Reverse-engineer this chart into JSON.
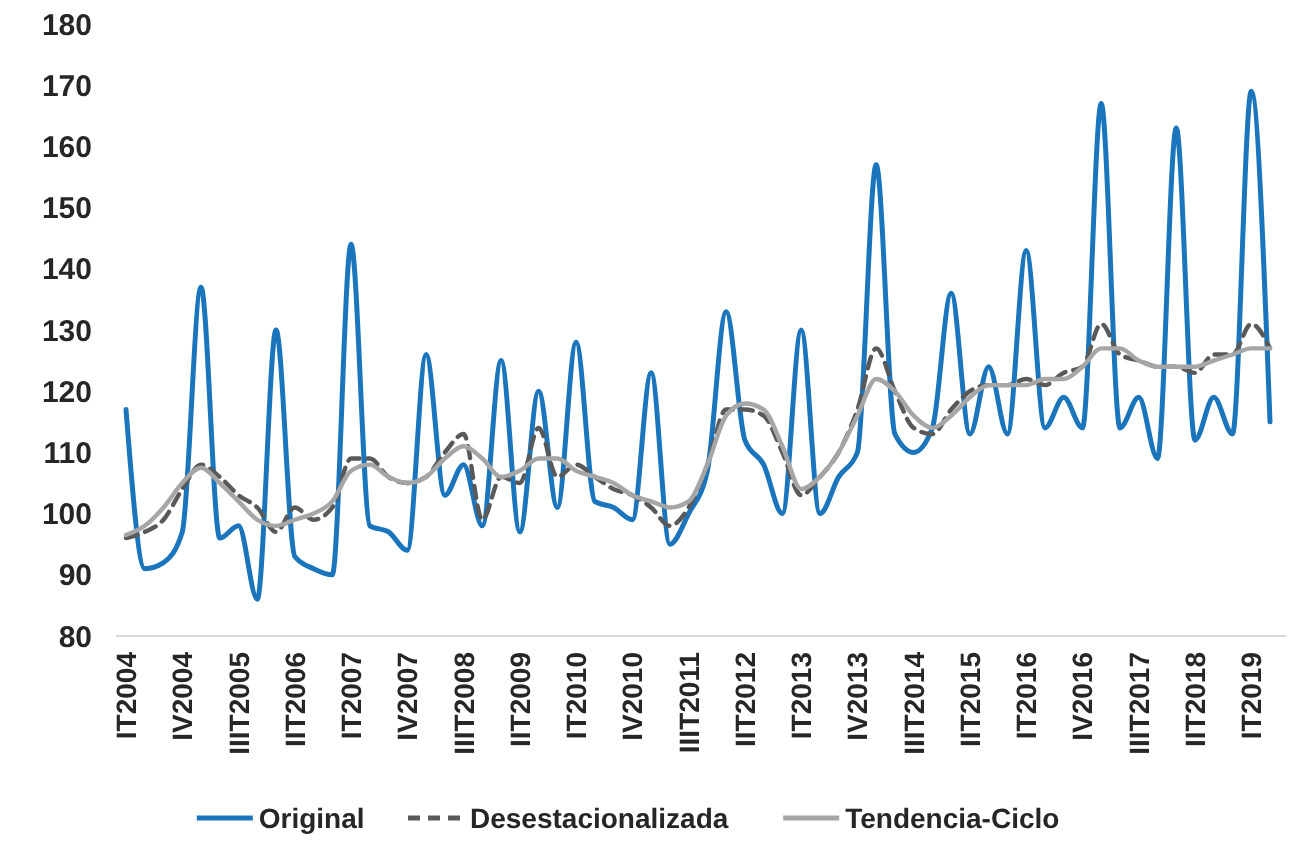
{
  "chart_data": {
    "type": "line",
    "categories": [
      "IT2004",
      null,
      null,
      "IV2004",
      null,
      null,
      "IIIT2005",
      null,
      null,
      "IIT2006",
      null,
      null,
      "IT2007",
      null,
      null,
      "IV2007",
      null,
      null,
      "IIIT2008",
      null,
      null,
      "IIT2009",
      null,
      null,
      "IT2010",
      null,
      null,
      "IV2010",
      null,
      null,
      "IIIT2011",
      null,
      null,
      "IIT2012",
      null,
      null,
      "IT2013",
      null,
      null,
      "IV2013",
      null,
      null,
      "IIIT2014",
      null,
      null,
      "IIT2015",
      null,
      null,
      "IT2016",
      null,
      null,
      "IV2016",
      null,
      null,
      "IIIT2017",
      null,
      null,
      "IIT2018",
      null,
      null,
      "IT2019",
      null
    ],
    "series": [
      {
        "name": "Original",
        "color": "#1b75bc",
        "line_style": "solid",
        "values": [
          117,
          91,
          92,
          97,
          137,
          96,
          98,
          86,
          130,
          93,
          91,
          90,
          144,
          98,
          97,
          94,
          126,
          103,
          108,
          98,
          125,
          97,
          120,
          101,
          128,
          102,
          101,
          99,
          123,
          95,
          100,
          107,
          133,
          112,
          108,
          100,
          130,
          100,
          106,
          110,
          157,
          113,
          110,
          114,
          136,
          113,
          124,
          113,
          143,
          114,
          119,
          114,
          167,
          114,
          119,
          109,
          163,
          112,
          119,
          113,
          169,
          115
        ]
      },
      {
        "name": "Desestacionalizada",
        "color": "#595959",
        "line_style": "dashed",
        "values": [
          96,
          97,
          99,
          104,
          108,
          106,
          103,
          101,
          97,
          101,
          99,
          101,
          109,
          109,
          106,
          105,
          106,
          110,
          113,
          99,
          106,
          105,
          114,
          106,
          108,
          106,
          104,
          103,
          101,
          98,
          101,
          108,
          117,
          117,
          116,
          110,
          103,
          106,
          110,
          117,
          127,
          120,
          114,
          113,
          117,
          120,
          121,
          121,
          122,
          121,
          123,
          124,
          131,
          126,
          125,
          124,
          124,
          123,
          126,
          126,
          131,
          127
        ]
      },
      {
        "name": "Tendencia-Ciclo",
        "color": "#a6a6a6",
        "line_style": "solid",
        "values": [
          96.5,
          98,
          101,
          105,
          107.5,
          105,
          102,
          99,
          98,
          99,
          100,
          102,
          107,
          108,
          106,
          105,
          106,
          109,
          111,
          109,
          106,
          107,
          109,
          109,
          107,
          106,
          105,
          103,
          102,
          101,
          102,
          108,
          116,
          118,
          117,
          111,
          104,
          106,
          110,
          116,
          122,
          120,
          116,
          114,
          116,
          119,
          121,
          121,
          121,
          122,
          122,
          124,
          127,
          127,
          125,
          124,
          124,
          124,
          125,
          126,
          127,
          127
        ]
      }
    ],
    "ylim": [
      80,
      180
    ],
    "yticks": [
      80,
      90,
      100,
      110,
      120,
      130,
      140,
      150,
      160,
      170,
      180
    ],
    "grid": false,
    "legend": "bottom",
    "marker": "none"
  }
}
